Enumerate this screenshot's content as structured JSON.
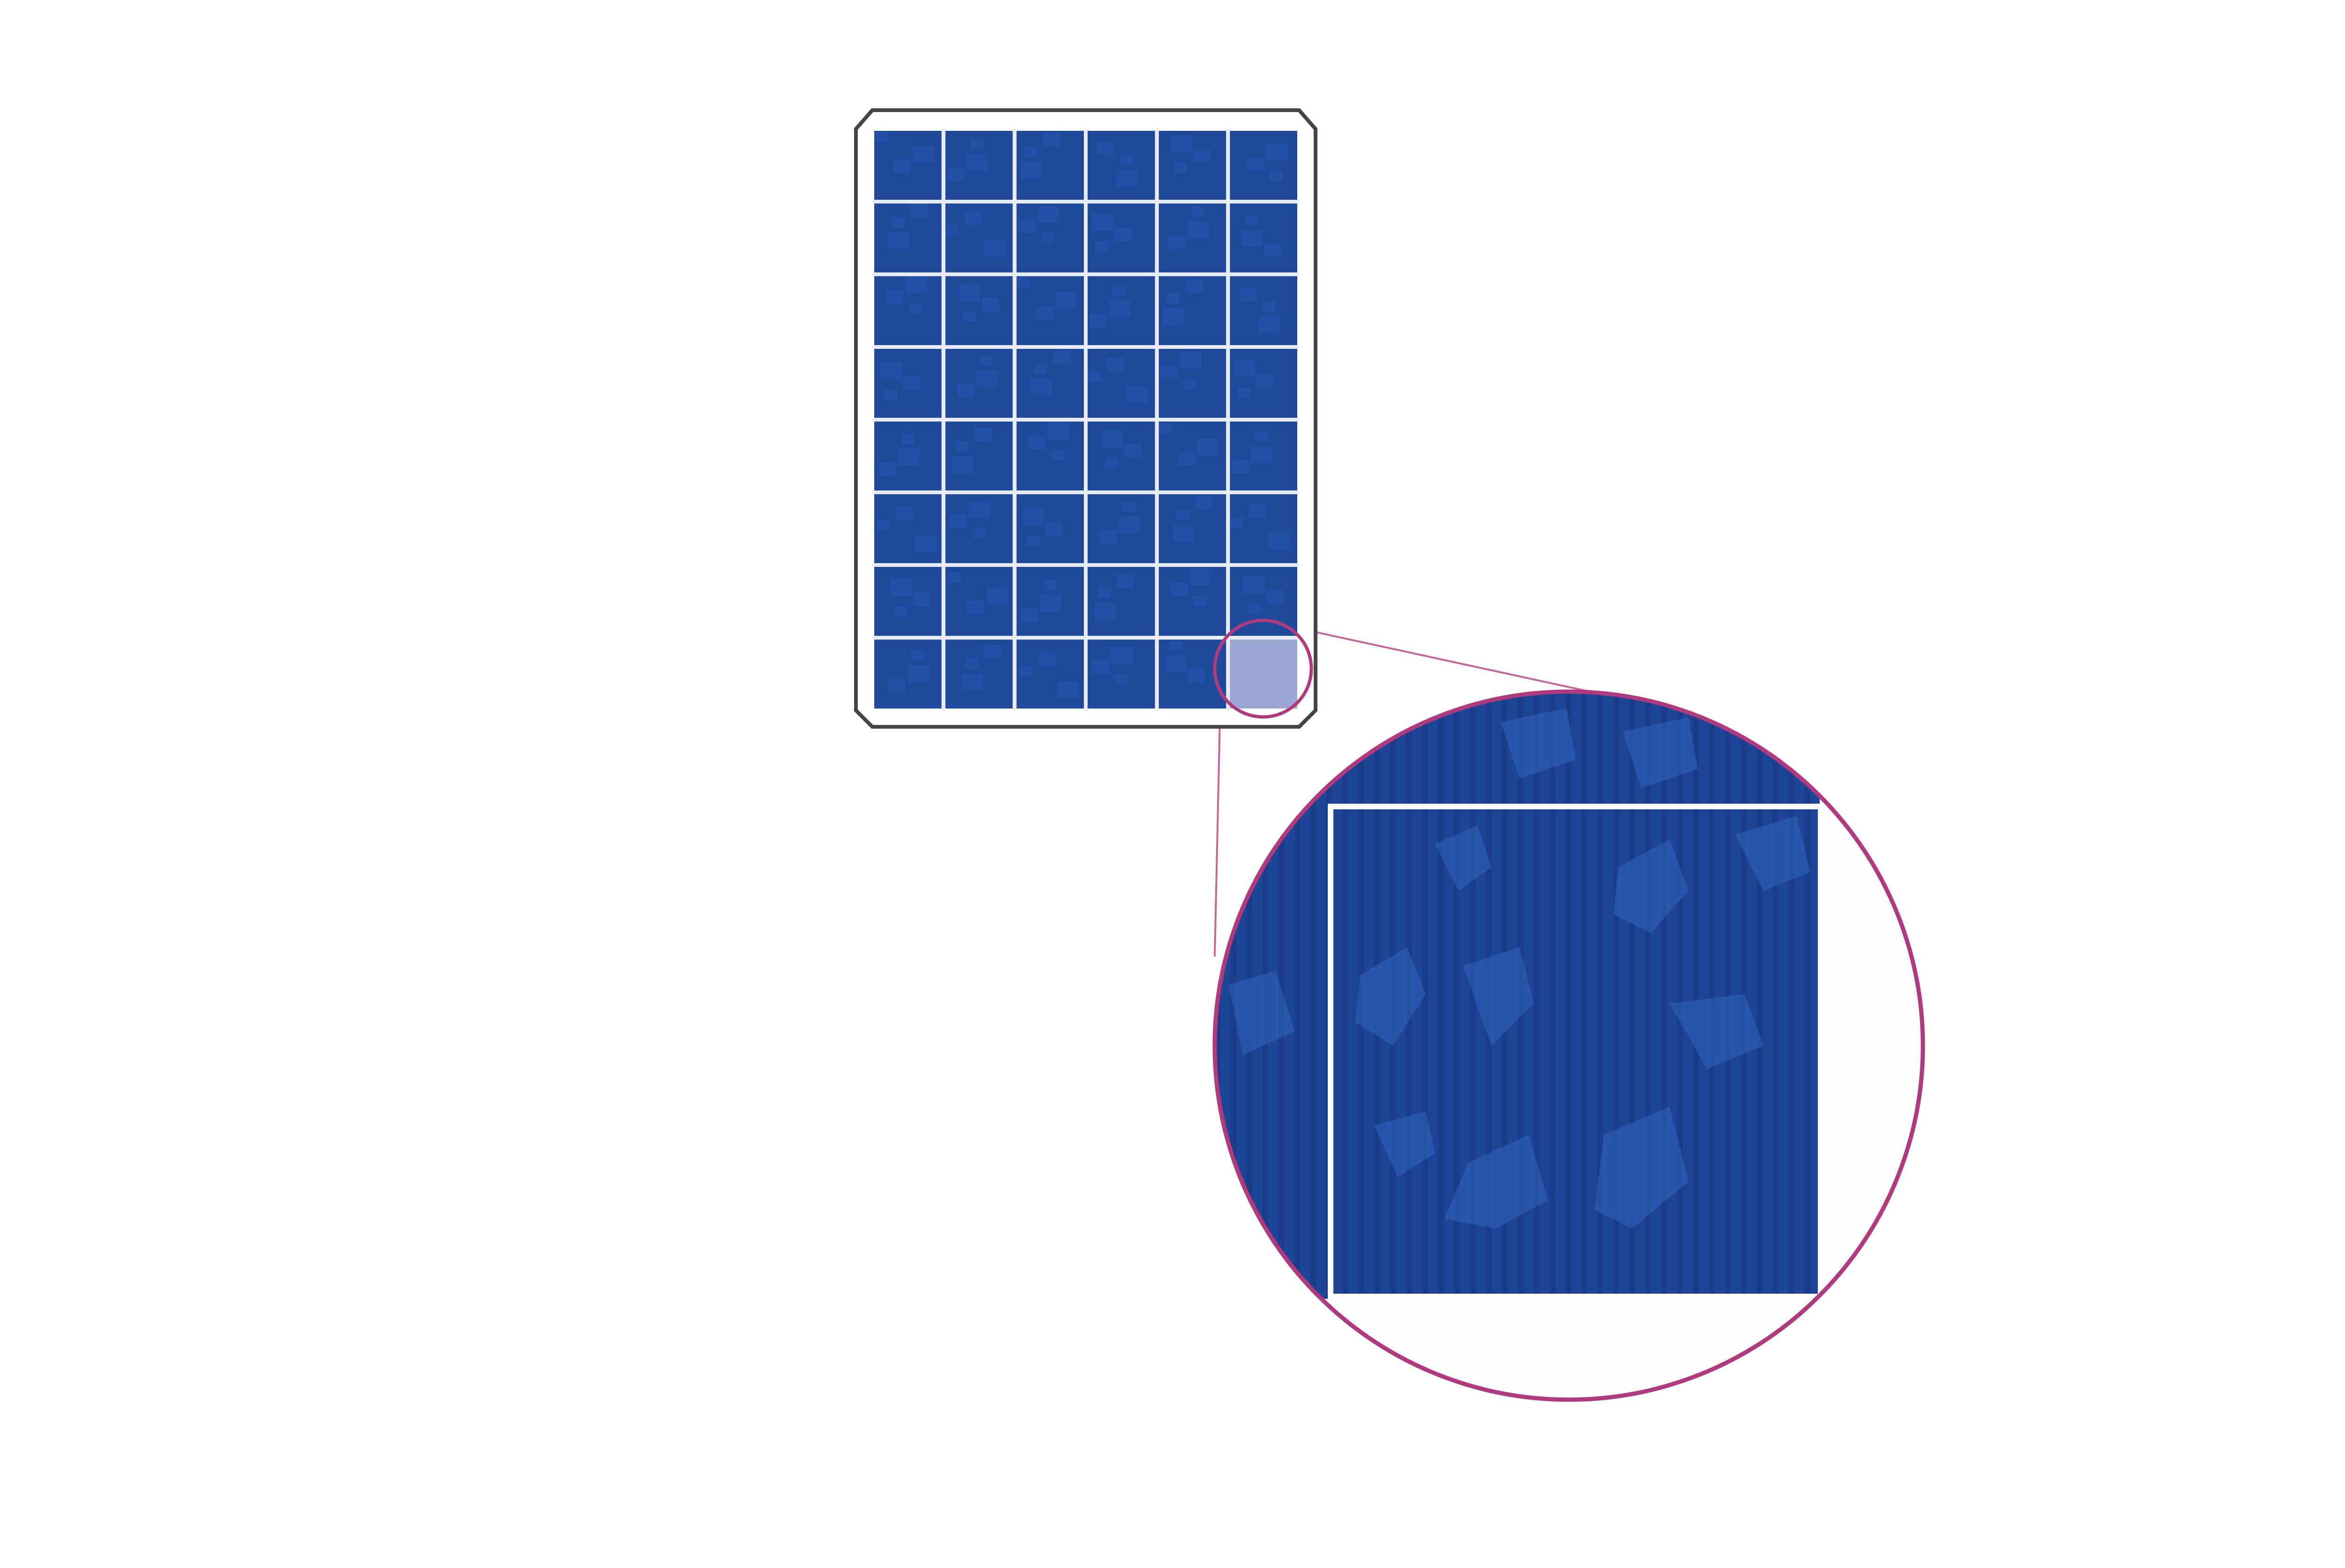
{
  "diagram": {
    "panel": {
      "rows": 8,
      "columns": 6,
      "cell_color": "#1f4a9b",
      "cell_texture_color": "#2a5bb0",
      "grid_line_color": "#e8ecf6",
      "frame_color": "#444444",
      "highlighted_cell": {
        "row": 8,
        "column": 6
      },
      "highlight_tint": "#9ba6d2"
    },
    "magnifier": {
      "ring_color": "#b03a7e",
      "connector_color": "#c4669a",
      "cell_color": "#1f4599",
      "stripe_color": "#18357a",
      "crystal_color": "#2e62b8",
      "cell_border_color": "#ffffff",
      "background_color": "#fdfdfd"
    }
  }
}
